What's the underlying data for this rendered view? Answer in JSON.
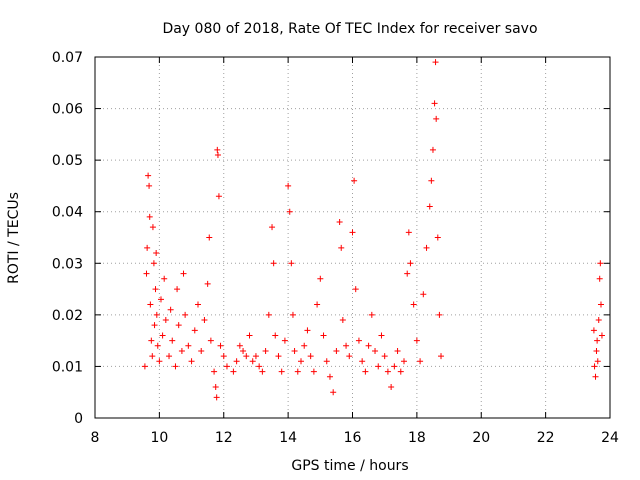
{
  "chart_data": {
    "type": "scatter",
    "title": "Day 080 of 2018, Rate Of TEC Index for receiver savo",
    "xlabel": "GPS time / hours",
    "ylabel": "ROTI / TECUs",
    "xlim": [
      8,
      24
    ],
    "ylim": [
      0,
      0.07
    ],
    "grid": true,
    "marker": "+",
    "color": "#ff0000",
    "x_ticks": [
      "8",
      "10",
      "12",
      "14",
      "16",
      "18",
      "20",
      "22",
      "24"
    ],
    "y_ticks": [
      "0",
      "0.01",
      "0.02",
      "0.03",
      "0.04",
      "0.05",
      "0.06",
      "0.07"
    ],
    "series": [
      {
        "name": "ROTI",
        "points": [
          [
            9.55,
            0.01
          ],
          [
            9.6,
            0.028
          ],
          [
            9.62,
            0.033
          ],
          [
            9.65,
            0.047
          ],
          [
            9.68,
            0.045
          ],
          [
            9.7,
            0.039
          ],
          [
            9.72,
            0.022
          ],
          [
            9.75,
            0.015
          ],
          [
            9.78,
            0.012
          ],
          [
            9.8,
            0.037
          ],
          [
            9.83,
            0.03
          ],
          [
            9.85,
            0.018
          ],
          [
            9.88,
            0.025
          ],
          [
            9.9,
            0.032
          ],
          [
            9.92,
            0.02
          ],
          [
            9.95,
            0.014
          ],
          [
            10.0,
            0.011
          ],
          [
            10.05,
            0.023
          ],
          [
            10.1,
            0.016
          ],
          [
            10.15,
            0.027
          ],
          [
            10.2,
            0.019
          ],
          [
            10.3,
            0.012
          ],
          [
            10.35,
            0.021
          ],
          [
            10.4,
            0.015
          ],
          [
            10.5,
            0.01
          ],
          [
            10.55,
            0.025
          ],
          [
            10.6,
            0.018
          ],
          [
            10.7,
            0.013
          ],
          [
            10.75,
            0.028
          ],
          [
            10.8,
            0.02
          ],
          [
            10.9,
            0.014
          ],
          [
            11.0,
            0.011
          ],
          [
            11.1,
            0.017
          ],
          [
            11.2,
            0.022
          ],
          [
            11.3,
            0.013
          ],
          [
            11.4,
            0.019
          ],
          [
            11.5,
            0.026
          ],
          [
            11.55,
            0.035
          ],
          [
            11.6,
            0.015
          ],
          [
            11.7,
            0.009
          ],
          [
            11.75,
            0.006
          ],
          [
            11.78,
            0.004
          ],
          [
            11.8,
            0.052
          ],
          [
            11.82,
            0.051
          ],
          [
            11.85,
            0.043
          ],
          [
            11.9,
            0.014
          ],
          [
            12.0,
            0.012
          ],
          [
            12.1,
            0.01
          ],
          [
            12.3,
            0.009
          ],
          [
            12.4,
            0.011
          ],
          [
            12.5,
            0.014
          ],
          [
            12.6,
            0.013
          ],
          [
            12.7,
            0.012
          ],
          [
            12.8,
            0.016
          ],
          [
            12.9,
            0.011
          ],
          [
            13.0,
            0.012
          ],
          [
            13.1,
            0.01
          ],
          [
            13.2,
            0.009
          ],
          [
            13.3,
            0.013
          ],
          [
            13.4,
            0.02
          ],
          [
            13.5,
            0.037
          ],
          [
            13.55,
            0.03
          ],
          [
            13.6,
            0.016
          ],
          [
            13.7,
            0.012
          ],
          [
            13.8,
            0.009
          ],
          [
            13.9,
            0.015
          ],
          [
            14.0,
            0.045
          ],
          [
            14.05,
            0.04
          ],
          [
            14.1,
            0.03
          ],
          [
            14.15,
            0.02
          ],
          [
            14.2,
            0.013
          ],
          [
            14.3,
            0.009
          ],
          [
            14.4,
            0.011
          ],
          [
            14.5,
            0.014
          ],
          [
            14.6,
            0.017
          ],
          [
            14.7,
            0.012
          ],
          [
            14.8,
            0.009
          ],
          [
            14.9,
            0.022
          ],
          [
            15.0,
            0.027
          ],
          [
            15.1,
            0.016
          ],
          [
            15.2,
            0.011
          ],
          [
            15.3,
            0.008
          ],
          [
            15.4,
            0.005
          ],
          [
            15.5,
            0.013
          ],
          [
            15.6,
            0.038
          ],
          [
            15.65,
            0.033
          ],
          [
            15.7,
            0.019
          ],
          [
            15.8,
            0.014
          ],
          [
            15.9,
            0.012
          ],
          [
            16.0,
            0.036
          ],
          [
            16.05,
            0.046
          ],
          [
            16.1,
            0.025
          ],
          [
            16.2,
            0.015
          ],
          [
            16.3,
            0.011
          ],
          [
            16.4,
            0.009
          ],
          [
            16.5,
            0.014
          ],
          [
            16.6,
            0.02
          ],
          [
            16.7,
            0.013
          ],
          [
            16.8,
            0.01
          ],
          [
            16.9,
            0.016
          ],
          [
            17.0,
            0.012
          ],
          [
            17.1,
            0.009
          ],
          [
            17.2,
            0.006
          ],
          [
            17.3,
            0.01
          ],
          [
            17.4,
            0.013
          ],
          [
            17.5,
            0.009
          ],
          [
            17.6,
            0.011
          ],
          [
            17.7,
            0.028
          ],
          [
            17.75,
            0.036
          ],
          [
            17.8,
            0.03
          ],
          [
            17.9,
            0.022
          ],
          [
            18.0,
            0.015
          ],
          [
            18.1,
            0.011
          ],
          [
            18.2,
            0.024
          ],
          [
            18.3,
            0.033
          ],
          [
            18.4,
            0.041
          ],
          [
            18.45,
            0.046
          ],
          [
            18.5,
            0.052
          ],
          [
            18.55,
            0.061
          ],
          [
            18.58,
            0.069
          ],
          [
            18.6,
            0.058
          ],
          [
            18.65,
            0.035
          ],
          [
            18.7,
            0.02
          ],
          [
            18.75,
            0.012
          ],
          [
            23.5,
            0.017
          ],
          [
            23.52,
            0.01
          ],
          [
            23.55,
            0.008
          ],
          [
            23.58,
            0.013
          ],
          [
            23.6,
            0.015
          ],
          [
            23.62,
            0.011
          ],
          [
            23.65,
            0.019
          ],
          [
            23.68,
            0.027
          ],
          [
            23.7,
            0.03
          ],
          [
            23.72,
            0.022
          ],
          [
            23.75,
            0.016
          ]
        ]
      }
    ]
  }
}
